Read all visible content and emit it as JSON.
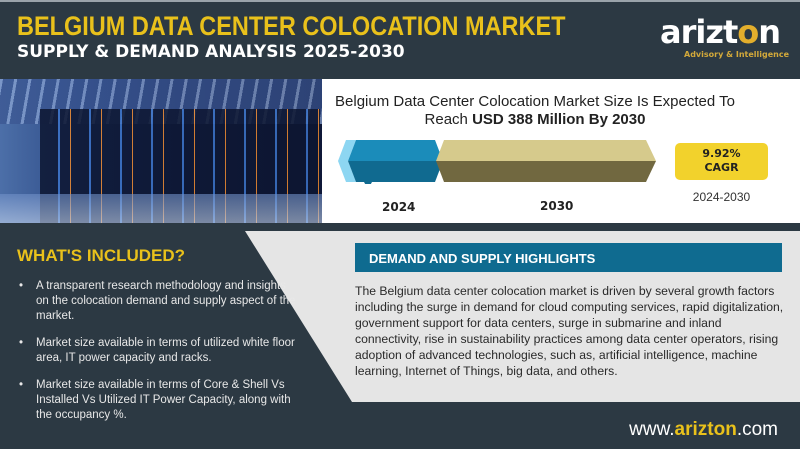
{
  "header": {
    "title": "BELGIUM DATA CENTER COLOCATION MARKET",
    "subtitle": "SUPPLY & DEMAND ANALYSIS 2025-2030"
  },
  "logo": {
    "name": "arizton",
    "tagline": "Advisory & Intelligence"
  },
  "market_size": {
    "text": "Belgium Data Center Colocation Market Size Is Expected To Reach",
    "highlight": "USD 388 Million By 2030"
  },
  "timeline": {
    "start_year": "2024",
    "end_year": "2030",
    "colors": {
      "start": "#1f8ab8",
      "end": "#d4c88a"
    }
  },
  "cagr": {
    "value": "9.92%",
    "label": "CAGR",
    "period": "2024-2030"
  },
  "whats_included": {
    "title": "WHAT'S INCLUDED?",
    "items": [
      "A transparent research methodology and insights on the colocation demand and supply aspect of the market.",
      "Market size available in terms of utilized white floor area, IT power capacity and racks.",
      "Market size available in terms of Core & Shell Vs Installed Vs Utilized IT Power Capacity, along with the occupancy %."
    ]
  },
  "highlights": {
    "title": "DEMAND AND SUPPLY HIGHLIGHTS",
    "text": "The Belgium data center colocation market is driven by several growth factors including the surge in demand for cloud computing services, rapid digitalization, government support for data centers, surge in submarine and inland connectivity, rise in sustainability practices among data center operators, rising adoption of advanced technologies, such as, artificial intelligence, machine learning, Internet of Things, big data, and others."
  },
  "footer": {
    "prefix": "www.",
    "brand": "arizton",
    "suffix": ".com"
  },
  "colors": {
    "header_bg": "#2c3943",
    "accent_yellow": "#e9c11b",
    "highlight_blue": "#0f6b90"
  }
}
